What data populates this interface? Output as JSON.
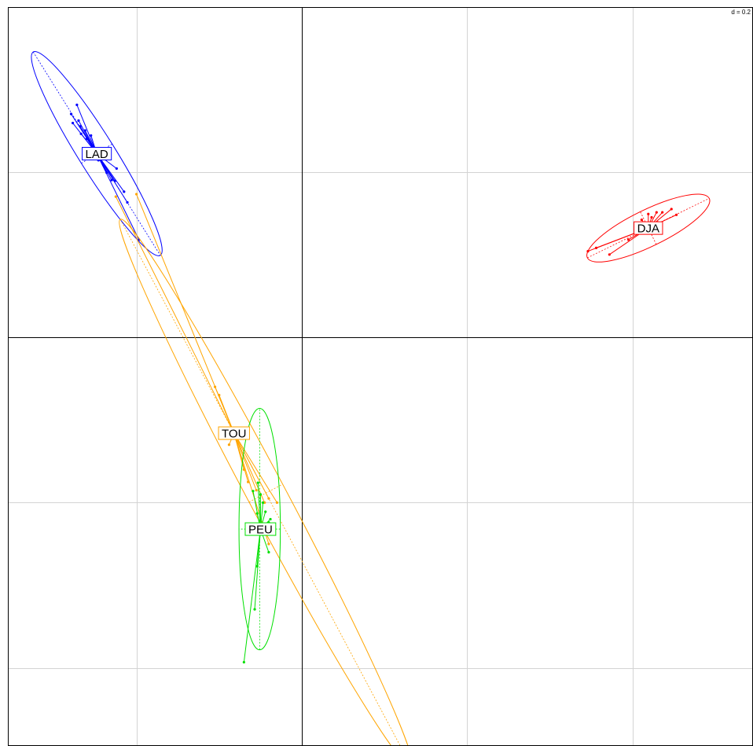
{
  "scale_label": "d = 0.2",
  "chart_data": {
    "type": "scatter",
    "grid": true,
    "grid_step": 0.2,
    "xlim": [
      -0.35,
      0.54
    ],
    "ylim": [
      -0.49,
      0.4
    ],
    "groups": [
      {
        "label": "LAD",
        "color": "#0000ff",
        "center": [
          -0.248,
          0.222
        ],
        "ellipse": {
          "cx": -0.248,
          "cy": 0.222,
          "a": 0.145,
          "b": 0.022,
          "angle": -58
        },
        "points": [
          [
            -0.272,
            0.281
          ],
          [
            -0.277,
            0.259
          ],
          [
            -0.268,
            0.255
          ],
          [
            -0.262,
            0.25
          ],
          [
            -0.267,
            0.246
          ],
          [
            -0.255,
            0.244
          ],
          [
            -0.279,
            0.27
          ],
          [
            -0.27,
            0.262
          ],
          [
            -0.26,
            0.24
          ],
          [
            -0.246,
            0.214
          ],
          [
            -0.236,
            0.199
          ],
          [
            -0.226,
            0.189
          ],
          [
            -0.215,
            0.176
          ],
          [
            -0.211,
            0.163
          ],
          [
            -0.197,
            0.118
          ],
          [
            -0.224,
            0.204
          ],
          [
            -0.23,
            0.19
          ],
          [
            -0.24,
            0.208
          ]
        ]
      },
      {
        "label": "DJA",
        "color": "#ff0000",
        "center": [
          0.419,
          0.132
        ],
        "ellipse": {
          "cx": 0.419,
          "cy": 0.132,
          "a": 0.082,
          "b": 0.022,
          "angle": 26
        },
        "points": [
          [
            0.346,
            0.104
          ],
          [
            0.356,
            0.108
          ],
          [
            0.372,
            0.1
          ],
          [
            0.395,
            0.118
          ],
          [
            0.411,
            0.142
          ],
          [
            0.419,
            0.149
          ],
          [
            0.429,
            0.151
          ],
          [
            0.436,
            0.151
          ],
          [
            0.447,
            0.155
          ],
          [
            0.453,
            0.148
          ],
          [
            0.423,
            0.145
          ],
          [
            0.43,
            0.139
          ],
          [
            0.41,
            0.135
          ]
        ]
      },
      {
        "label": "TOU",
        "color": "#ffa500",
        "center": [
          -0.082,
          -0.116
        ],
        "ellipse": {
          "cx": -0.0435,
          "cy": -0.1885,
          "a": 0.375,
          "b": 0.023,
          "angle": -62
        },
        "points": [
          [
            -0.2,
            0.173
          ],
          [
            -0.225,
            0.17
          ],
          [
            -0.105,
            -0.06
          ],
          [
            -0.1,
            -0.07
          ],
          [
            -0.088,
            -0.13
          ],
          [
            -0.07,
            -0.16
          ],
          [
            -0.065,
            -0.175
          ],
          [
            -0.055,
            -0.185
          ],
          [
            -0.04,
            -0.195
          ],
          [
            -0.03,
            -0.2
          ],
          [
            -0.045,
            -0.2
          ],
          [
            -0.04,
            -0.25
          ]
        ]
      },
      {
        "label": "PEU",
        "color": "#00e000",
        "center": [
          -0.05,
          -0.232
        ],
        "ellipse": {
          "cx": -0.051,
          "cy": -0.232,
          "a": 0.146,
          "b": 0.025,
          "angle": 90
        },
        "points": [
          [
            -0.07,
            -0.393
          ],
          [
            -0.057,
            -0.329
          ],
          [
            -0.054,
            -0.277
          ],
          [
            -0.054,
            -0.213
          ],
          [
            -0.059,
            -0.186
          ],
          [
            -0.053,
            -0.176
          ],
          [
            -0.05,
            -0.19
          ],
          [
            -0.047,
            -0.2
          ],
          [
            -0.044,
            -0.211
          ],
          [
            -0.04,
            -0.224
          ],
          [
            -0.038,
            -0.22
          ],
          [
            -0.04,
            -0.26
          ],
          [
            -0.037,
            -0.226
          ]
        ]
      }
    ]
  }
}
